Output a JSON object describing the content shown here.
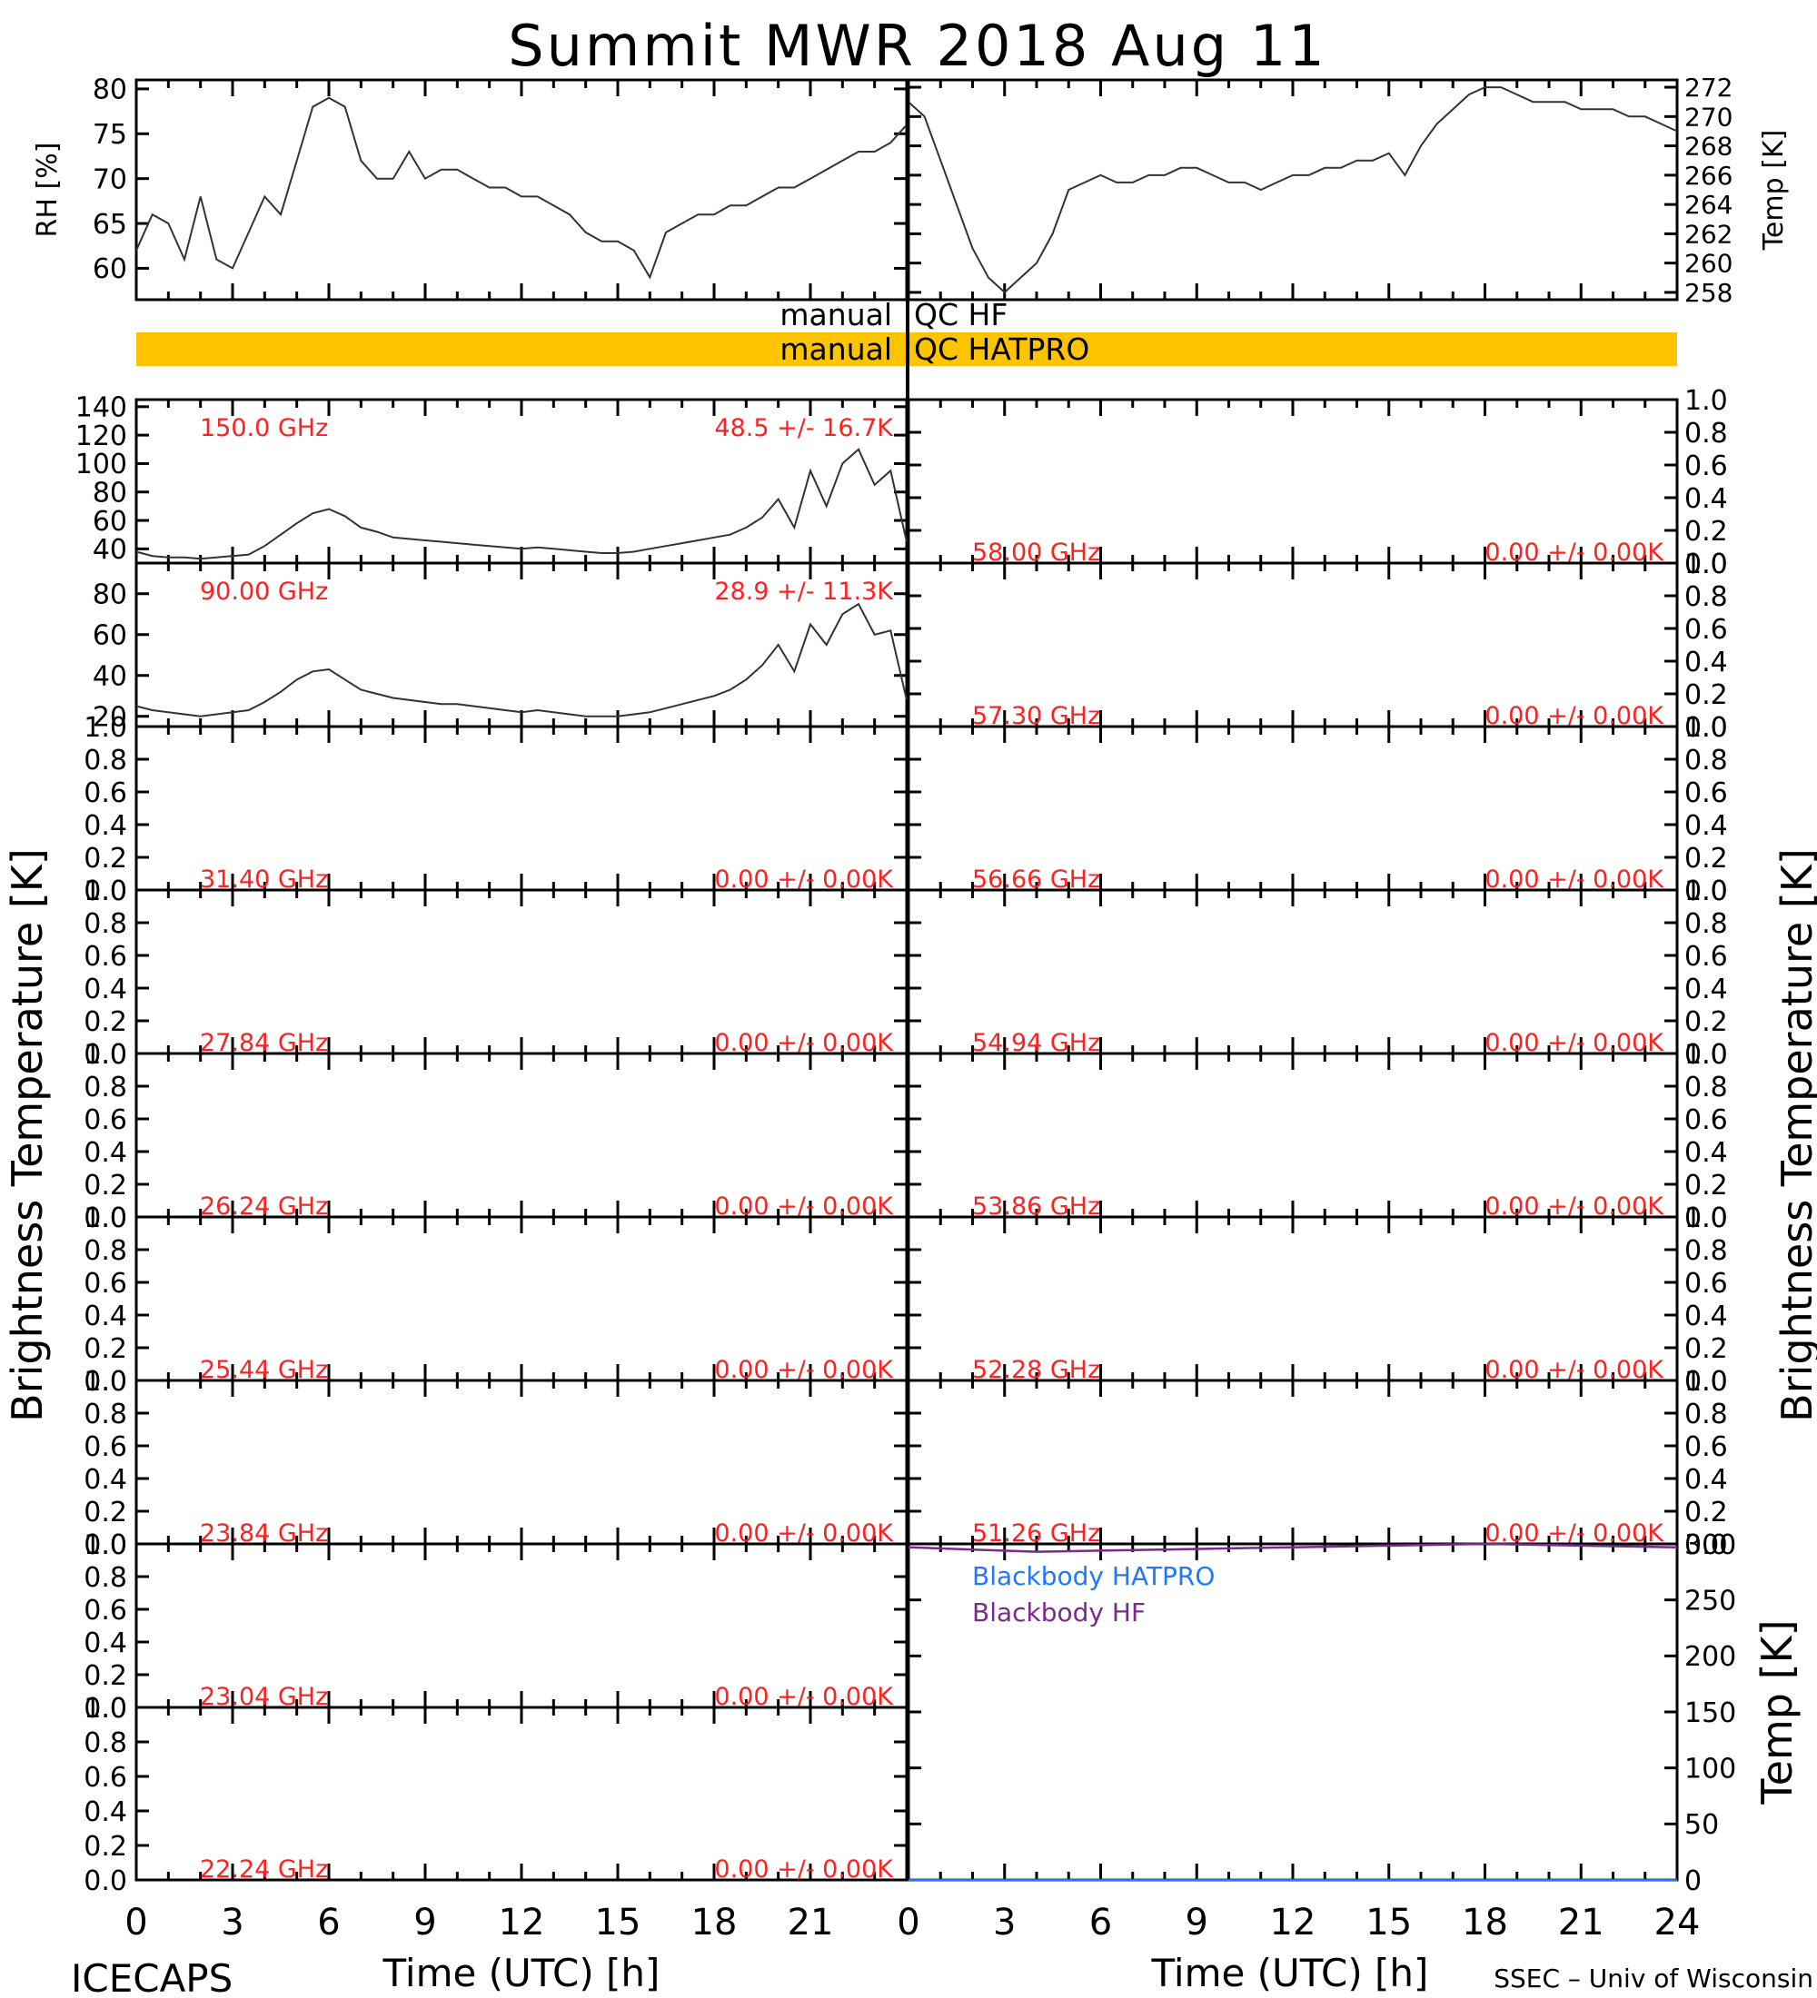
{
  "title": "Summit MWR 2018 Aug 11",
  "footer": {
    "left": "ICECAPS",
    "right": "SSEC – Univ of Wisconsin"
  },
  "time_axis": {
    "label": "Time (UTC) [h]",
    "ticks": [
      0,
      3,
      6,
      9,
      12,
      15,
      18,
      21,
      24
    ],
    "tick_labels_left": [
      "0",
      "3",
      "6",
      "9",
      "12",
      "15",
      "18",
      "21",
      ""
    ],
    "tick_labels_right": [
      "0",
      "3",
      "6",
      "9",
      "12",
      "15",
      "18",
      "21",
      "24"
    ]
  },
  "side_labels": {
    "brightness_left": "Brightness Temperature [K]",
    "brightness_right": "Brightness Temperature [K]",
    "temp_bottom": "Temp [K]"
  },
  "qc": {
    "hf_label": "manual QC HF",
    "hatpro_label": "manual QC HATPRO",
    "hatpro_color": "#ffc400",
    "manual_word": "manual",
    "hf_word": "QC HF",
    "hatpro_word": "QC HATPRO"
  },
  "chart_data": [
    {
      "type": "line",
      "panel": "rh",
      "ylabel": "RH [%]",
      "ylim": [
        56.5,
        81
      ],
      "yticks": [
        60,
        65,
        70,
        75,
        80
      ],
      "x": [
        0,
        0.5,
        1,
        1.5,
        2,
        2.5,
        3,
        3.5,
        4,
        4.5,
        5,
        5.5,
        6,
        6.5,
        7,
        7.5,
        8,
        8.5,
        9,
        9.5,
        10,
        10.5,
        11,
        11.5,
        12,
        12.5,
        13,
        13.5,
        14,
        14.5,
        15,
        15.5,
        16,
        16.5,
        17,
        17.5,
        18,
        18.5,
        19,
        19.5,
        20,
        20.5,
        21,
        21.5,
        22,
        22.5,
        23,
        23.5,
        24
      ],
      "y": [
        62,
        66,
        65,
        61,
        68,
        61,
        60,
        64,
        68,
        66,
        72,
        78,
        79,
        78,
        72,
        70,
        70,
        73,
        70,
        71,
        71,
        70,
        69,
        69,
        68,
        68,
        67,
        66,
        64,
        63,
        63,
        62,
        59,
        64,
        65,
        66,
        66,
        67,
        67,
        68,
        69,
        69,
        70,
        71,
        72,
        73,
        73,
        74,
        76
      ]
    },
    {
      "type": "line",
      "panel": "temp",
      "ylabel": "Temp [K]",
      "ylim": [
        257.5,
        272.5
      ],
      "yticks": [
        258,
        260,
        262,
        264,
        266,
        268,
        270,
        272
      ],
      "x": [
        0,
        0.5,
        1,
        1.5,
        2,
        2.5,
        3,
        3.5,
        4,
        4.5,
        5,
        5.5,
        6,
        6.5,
        7,
        7.5,
        8,
        8.5,
        9,
        9.5,
        10,
        10.5,
        11,
        11.5,
        12,
        12.5,
        13,
        13.5,
        14,
        14.5,
        15,
        15.5,
        16,
        16.5,
        17,
        17.5,
        18,
        18.5,
        19,
        19.5,
        20,
        20.5,
        21,
        21.5,
        22,
        22.5,
        23,
        23.5,
        24
      ],
      "y": [
        271,
        270,
        267,
        264,
        261,
        259,
        258,
        259,
        260,
        262,
        265,
        265.5,
        266,
        265.5,
        265.5,
        266,
        266,
        266.5,
        266.5,
        266,
        265.5,
        265.5,
        265,
        265.5,
        266,
        266,
        266.5,
        266.5,
        267,
        267,
        267.5,
        266,
        268,
        269.5,
        270.5,
        271.5,
        272,
        272,
        271.5,
        271,
        271,
        271,
        270.5,
        270.5,
        270.5,
        270,
        270,
        269.5,
        269
      ]
    },
    {
      "type": "line",
      "panel": "150.0 GHz",
      "ylim": [
        30,
        145
      ],
      "yticks": [
        40,
        60,
        80,
        100,
        120,
        140
      ],
      "label": "150.0 GHz",
      "stats": "48.5 +/-  16.7K",
      "x": [
        0,
        0.5,
        1,
        1.5,
        2,
        2.5,
        3,
        3.5,
        4,
        4.5,
        5,
        5.5,
        6,
        6.5,
        7,
        7.5,
        8,
        8.5,
        9,
        9.5,
        10,
        10.5,
        11,
        11.5,
        12,
        12.5,
        13,
        13.5,
        14,
        14.5,
        15,
        15.5,
        16,
        16.5,
        17,
        17.5,
        18,
        18.5,
        19,
        19.5,
        20,
        20.5,
        21,
        21.5,
        22,
        22.5,
        23,
        23.5,
        24
      ],
      "y": [
        38,
        35,
        34,
        34,
        33,
        34,
        35,
        36,
        42,
        50,
        58,
        65,
        68,
        63,
        55,
        52,
        48,
        47,
        46,
        45,
        44,
        43,
        42,
        41,
        40,
        41,
        40,
        39,
        38,
        37,
        37,
        38,
        40,
        42,
        44,
        46,
        48,
        50,
        55,
        62,
        75,
        55,
        95,
        70,
        100,
        110,
        85,
        95,
        45
      ]
    },
    {
      "type": "line",
      "panel": "90.00 GHz",
      "ylim": [
        15,
        95
      ],
      "yticks": [
        20,
        40,
        60,
        80
      ],
      "label": "90.00 GHz",
      "stats": "28.9 +/-  11.3K",
      "x": [
        0,
        0.5,
        1,
        1.5,
        2,
        2.5,
        3,
        3.5,
        4,
        4.5,
        5,
        5.5,
        6,
        6.5,
        7,
        7.5,
        8,
        8.5,
        9,
        9.5,
        10,
        10.5,
        11,
        11.5,
        12,
        12.5,
        13,
        13.5,
        14,
        14.5,
        15,
        15.5,
        16,
        16.5,
        17,
        17.5,
        18,
        18.5,
        19,
        19.5,
        20,
        20.5,
        21,
        21.5,
        22,
        22.5,
        23,
        23.5,
        24
      ],
      "y": [
        25,
        23,
        22,
        21,
        20,
        21,
        22,
        23,
        27,
        32,
        38,
        42,
        43,
        38,
        33,
        31,
        29,
        28,
        27,
        26,
        26,
        25,
        24,
        23,
        22,
        23,
        22,
        21,
        20,
        20,
        20,
        21,
        22,
        24,
        26,
        28,
        30,
        33,
        38,
        45,
        55,
        42,
        65,
        55,
        70,
        75,
        60,
        62,
        28
      ]
    },
    {
      "type": "line",
      "panel": "31.40 GHz",
      "label": "31.40 GHz",
      "stats": "0.00 +/-  0.00K",
      "ylim": [
        0,
        1
      ],
      "yticks": [
        0,
        0.2,
        0.4,
        0.6,
        0.8,
        1.0
      ]
    },
    {
      "type": "line",
      "panel": "27.84 GHz",
      "label": "27.84 GHz",
      "stats": "0.00 +/-  0.00K",
      "ylim": [
        0,
        1
      ],
      "yticks": [
        0,
        0.2,
        0.4,
        0.6,
        0.8,
        1.0
      ]
    },
    {
      "type": "line",
      "panel": "26.24 GHz",
      "label": "26.24 GHz",
      "stats": "0.00 +/-  0.00K",
      "ylim": [
        0,
        1
      ],
      "yticks": [
        0,
        0.2,
        0.4,
        0.6,
        0.8,
        1.0
      ]
    },
    {
      "type": "line",
      "panel": "25.44 GHz",
      "label": "25.44 GHz",
      "stats": "0.00 +/-  0.00K",
      "ylim": [
        0,
        1
      ],
      "yticks": [
        0,
        0.2,
        0.4,
        0.6,
        0.8,
        1.0
      ]
    },
    {
      "type": "line",
      "panel": "23.84 GHz",
      "label": "23.84 GHz",
      "stats": "0.00 +/-  0.00K",
      "ylim": [
        0,
        1
      ],
      "yticks": [
        0,
        0.2,
        0.4,
        0.6,
        0.8,
        1.0
      ]
    },
    {
      "type": "line",
      "panel": "23.04 GHz",
      "label": "23.04 GHz",
      "stats": "0.00 +/-  0.00K",
      "ylim": [
        0,
        1
      ],
      "yticks": [
        0,
        0.2,
        0.4,
        0.6,
        0.8,
        1.0
      ]
    },
    {
      "type": "line",
      "panel": "22.24 GHz",
      "label": "22.24 GHz",
      "stats": "0.00 +/-  0.00K",
      "ylim": [
        0,
        1
      ],
      "yticks": [
        0,
        0.2,
        0.4,
        0.6,
        0.8,
        1.0
      ]
    },
    {
      "type": "line",
      "panel": "58.00 GHz",
      "label": "58.00 GHz",
      "stats": "0.00 +/-  0.00K",
      "ylim": [
        0,
        1
      ],
      "yticks": [
        0,
        0.2,
        0.4,
        0.6,
        0.8,
        1.0
      ]
    },
    {
      "type": "line",
      "panel": "57.30 GHz",
      "label": "57.30 GHz",
      "stats": "0.00 +/-  0.00K",
      "ylim": [
        0,
        1
      ],
      "yticks": [
        0,
        0.2,
        0.4,
        0.6,
        0.8,
        1.0
      ]
    },
    {
      "type": "line",
      "panel": "56.66 GHz",
      "label": "56.66 GHz",
      "stats": "0.00 +/-  0.00K",
      "ylim": [
        0,
        1
      ],
      "yticks": [
        0,
        0.2,
        0.4,
        0.6,
        0.8,
        1.0
      ]
    },
    {
      "type": "line",
      "panel": "54.94 GHz",
      "label": "54.94 GHz",
      "stats": "0.00 +/-  0.00K",
      "ylim": [
        0,
        1
      ],
      "yticks": [
        0,
        0.2,
        0.4,
        0.6,
        0.8,
        1.0
      ]
    },
    {
      "type": "line",
      "panel": "53.86 GHz",
      "label": "53.86 GHz",
      "stats": "0.00 +/-  0.00K",
      "ylim": [
        0,
        1
      ],
      "yticks": [
        0,
        0.2,
        0.4,
        0.6,
        0.8,
        1.0
      ]
    },
    {
      "type": "line",
      "panel": "52.28 GHz",
      "label": "52.28 GHz",
      "stats": "0.00 +/-  0.00K",
      "ylim": [
        0,
        1
      ],
      "yticks": [
        0,
        0.2,
        0.4,
        0.6,
        0.8,
        1.0
      ]
    },
    {
      "type": "line",
      "panel": "51.26 GHz",
      "label": "51.26 GHz",
      "stats": "0.00 +/-  0.00K",
      "ylim": [
        0,
        1
      ],
      "yticks": [
        0,
        0.2,
        0.4,
        0.6,
        0.8,
        1.0
      ]
    },
    {
      "type": "line",
      "panel": "blackbody",
      "ylim": [
        0,
        300
      ],
      "yticks": [
        0,
        50,
        100,
        150,
        200,
        250,
        300
      ],
      "series": [
        {
          "name": "Blackbody HATPRO",
          "color": "#1e78ff",
          "x": [
            0,
            24
          ],
          "y": [
            0,
            0
          ]
        },
        {
          "name": "Blackbody HF",
          "color": "#7a2a8c",
          "x": [
            0,
            2,
            4,
            6,
            8,
            10,
            12,
            14,
            16,
            18,
            20,
            22,
            24
          ],
          "y": [
            297,
            295,
            293,
            294,
            295,
            296,
            297,
            298,
            299,
            300,
            299,
            298,
            297
          ]
        }
      ]
    }
  ]
}
